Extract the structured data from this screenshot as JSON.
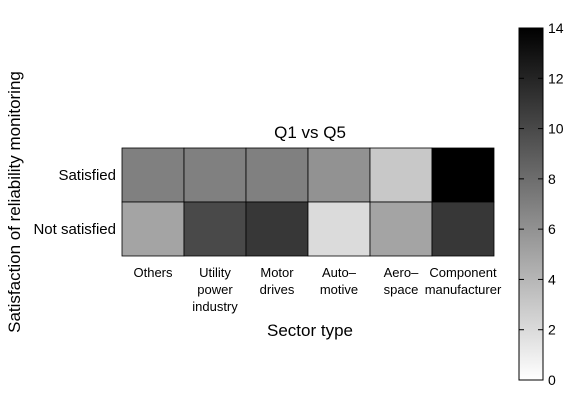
{
  "chart_data": {
    "type": "heatmap",
    "title": "Q1 vs Q5",
    "xlabel": "Sector type",
    "ylabel": "Satisfaction of reliability monitoring",
    "x_categories": [
      [
        "Others"
      ],
      [
        "Utility",
        "power",
        "industry"
      ],
      [
        "Motor",
        "drives"
      ],
      [
        "Auto–",
        "motive"
      ],
      [
        "Aero–",
        "space"
      ],
      [
        "Component",
        "manufacturer"
      ]
    ],
    "y_categories": [
      "Satisfied",
      "Not satisfied"
    ],
    "values": [
      [
        7,
        7,
        7,
        6,
        3,
        14
      ],
      [
        5,
        10,
        11,
        2,
        5,
        11
      ]
    ],
    "colorbar": {
      "min": 0,
      "max": 14,
      "ticks": [
        0,
        2,
        4,
        6,
        8,
        10,
        12,
        14
      ],
      "colormap": "gray-reversed",
      "low_color": "#ffffff",
      "high_color": "#000000"
    }
  }
}
